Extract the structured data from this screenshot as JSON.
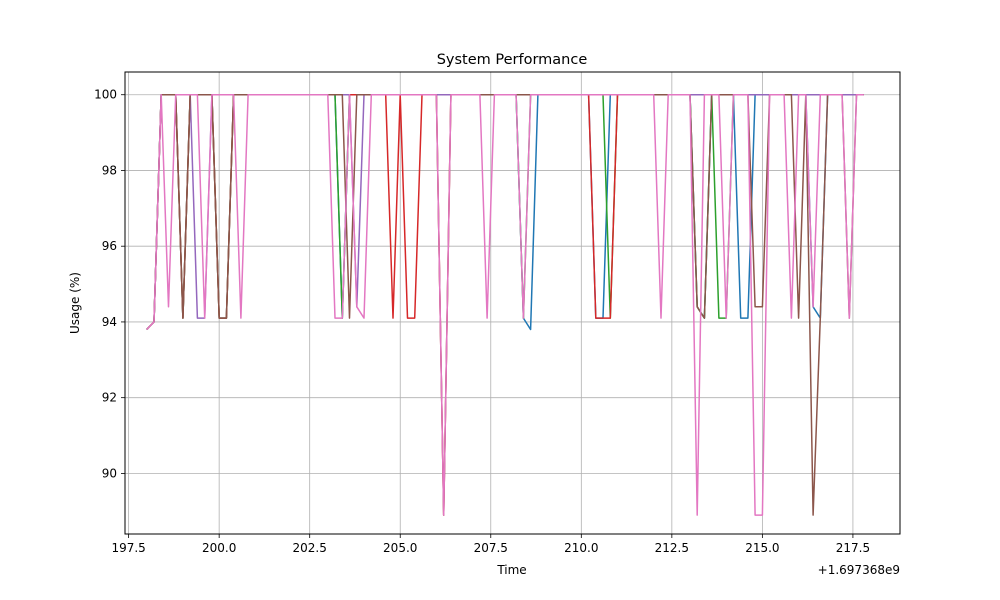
{
  "chart_data": {
    "type": "line",
    "title": "System Performance",
    "xlabel": "Time",
    "ylabel": "Usage (%)",
    "x_offset_label": "+1.697368e9",
    "xlim": [
      197.4,
      218.8
    ],
    "ylim": [
      88.4,
      100.6
    ],
    "x_ticks": [
      197.5,
      200.0,
      202.5,
      205.0,
      207.5,
      210.0,
      212.5,
      215.0,
      217.5
    ],
    "x_tick_labels": [
      "197.5",
      "200.0",
      "202.5",
      "205.0",
      "207.5",
      "210.0",
      "212.5",
      "215.0",
      "217.5"
    ],
    "y_ticks": [
      90,
      92,
      94,
      96,
      98,
      100
    ],
    "y_tick_labels": [
      "90",
      "92",
      "94",
      "96",
      "98",
      "100"
    ],
    "grid": true,
    "legend": "none",
    "series": [
      {
        "color": "#1f77b4",
        "x": [
          198.0,
          198.2,
          198.4,
          198.6,
          198.8,
          199.0,
          199.2,
          199.4,
          199.6,
          199.8,
          200.0,
          200.2,
          200.4,
          200.6,
          200.8,
          201.0,
          202.0,
          203.0,
          203.2,
          203.4,
          203.6,
          203.8,
          204.0,
          204.2,
          204.4,
          204.6,
          204.8,
          205.0,
          205.2,
          205.4,
          205.6,
          205.8,
          206.0,
          206.2,
          206.4,
          206.6,
          207.0,
          207.2,
          207.4,
          207.6,
          208.0,
          208.2,
          208.4,
          208.6,
          208.8,
          209.0,
          210.0,
          210.2,
          210.4,
          210.6,
          210.8,
          211.0,
          211.4,
          211.6,
          211.8,
          212.0,
          212.2,
          212.4,
          212.6,
          213.0,
          213.2,
          213.4,
          213.6,
          213.8,
          214.0,
          214.2,
          214.4,
          214.6,
          214.8,
          215.0,
          215.2,
          215.4,
          215.6,
          215.8,
          216.0,
          216.2,
          216.4,
          216.6,
          216.8,
          217.0,
          217.2,
          217.4,
          217.6,
          217.8
        ],
        "y": [
          93.8,
          94.0,
          100.0,
          100.0,
          100.0,
          94.1,
          100.0,
          100.0,
          100.0,
          100.0,
          94.1,
          94.1,
          100.0,
          100.0,
          100.0,
          100.0,
          100.0,
          100.0,
          100.0,
          94.1,
          100.0,
          100.0,
          100.0,
          100.0,
          100.0,
          100.0,
          100.0,
          100.0,
          100.0,
          100.0,
          100.0,
          100.0,
          100.0,
          100.0,
          100.0,
          100.0,
          100.0,
          100.0,
          100.0,
          100.0,
          100.0,
          100.0,
          94.1,
          93.8,
          100.0,
          100.0,
          100.0,
          100.0,
          94.1,
          94.1,
          100.0,
          100.0,
          100.0,
          100.0,
          100.0,
          100.0,
          100.0,
          100.0,
          100.0,
          100.0,
          94.4,
          94.1,
          100.0,
          100.0,
          100.0,
          100.0,
          94.1,
          94.1,
          100.0,
          100.0,
          100.0,
          100.0,
          100.0,
          100.0,
          100.0,
          100.0,
          94.4,
          94.1,
          100.0,
          100.0,
          100.0,
          100.0,
          100.0,
          100.0
        ]
      },
      {
        "color": "#2ca02c",
        "x": [
          198.0,
          198.2,
          198.4,
          198.6,
          198.8,
          199.0,
          199.2,
          199.4,
          199.6,
          199.8,
          200.0,
          200.2,
          200.4,
          200.6,
          200.8,
          201.0,
          202.0,
          203.0,
          203.2,
          203.4,
          203.6,
          203.8,
          204.0,
          204.2,
          204.4,
          204.6,
          204.8,
          205.0,
          205.2,
          205.4,
          205.6,
          205.8,
          206.0,
          206.2,
          206.4,
          206.6,
          207.0,
          207.2,
          207.4,
          207.6,
          208.0,
          208.2,
          208.4,
          208.6,
          208.8,
          209.0,
          210.0,
          210.4,
          210.6,
          210.8,
          211.0,
          211.2,
          211.6,
          212.0,
          212.4,
          212.6,
          213.0,
          213.2,
          213.4,
          213.6,
          213.8,
          214.0,
          214.2,
          214.4,
          214.6,
          214.8,
          215.0,
          215.2,
          215.4,
          215.6,
          215.8,
          216.0,
          216.4,
          216.6,
          216.8,
          217.0,
          217.2,
          217.4,
          217.6,
          217.8
        ],
        "y": [
          93.8,
          94.0,
          100.0,
          100.0,
          100.0,
          94.1,
          100.0,
          100.0,
          100.0,
          100.0,
          94.1,
          94.1,
          100.0,
          100.0,
          100.0,
          100.0,
          100.0,
          100.0,
          100.0,
          94.1,
          100.0,
          100.0,
          100.0,
          100.0,
          100.0,
          100.0,
          100.0,
          100.0,
          100.0,
          100.0,
          100.0,
          100.0,
          100.0,
          100.0,
          100.0,
          100.0,
          100.0,
          100.0,
          100.0,
          100.0,
          100.0,
          100.0,
          94.1,
          100.0,
          100.0,
          100.0,
          100.0,
          100.0,
          100.0,
          94.1,
          100.0,
          100.0,
          100.0,
          100.0,
          100.0,
          100.0,
          100.0,
          94.4,
          94.1,
          100.0,
          94.1,
          94.1,
          100.0,
          100.0,
          100.0,
          100.0,
          100.0,
          100.0,
          100.0,
          100.0,
          100.0,
          100.0,
          100.0,
          100.0,
          100.0,
          100.0,
          100.0,
          100.0,
          100.0,
          100.0
        ]
      },
      {
        "color": "#d62728",
        "x": [
          198.0,
          198.2,
          198.4,
          198.6,
          198.8,
          199.0,
          199.2,
          199.4,
          199.6,
          199.8,
          200.0,
          200.2,
          200.4,
          200.6,
          200.8,
          201.0,
          202.0,
          203.0,
          203.2,
          203.4,
          203.6,
          203.8,
          204.0,
          204.2,
          204.4,
          204.6,
          204.8,
          205.0,
          205.2,
          205.4,
          205.6,
          205.8,
          206.0,
          206.2,
          206.4,
          206.6,
          207.0,
          208.0,
          208.4,
          208.6,
          209.0,
          210.0,
          210.2,
          210.4,
          210.6,
          210.8,
          211.0,
          212.0,
          213.0,
          213.4,
          213.6,
          214.0,
          214.4,
          214.8,
          215.0,
          215.4,
          215.8,
          216.0,
          216.4,
          216.8,
          217.0,
          217.4,
          217.8
        ],
        "y": [
          93.8,
          94.0,
          100.0,
          100.0,
          100.0,
          94.1,
          100.0,
          100.0,
          100.0,
          100.0,
          94.1,
          94.1,
          100.0,
          100.0,
          100.0,
          100.0,
          100.0,
          100.0,
          100.0,
          100.0,
          100.0,
          100.0,
          100.0,
          100.0,
          100.0,
          100.0,
          94.1,
          100.0,
          94.1,
          94.1,
          100.0,
          100.0,
          100.0,
          88.9,
          100.0,
          100.0,
          100.0,
          100.0,
          100.0,
          100.0,
          100.0,
          100.0,
          100.0,
          94.1,
          94.1,
          94.1,
          100.0,
          100.0,
          100.0,
          100.0,
          100.0,
          100.0,
          100.0,
          100.0,
          100.0,
          100.0,
          100.0,
          100.0,
          100.0,
          100.0,
          100.0,
          100.0,
          100.0
        ]
      },
      {
        "color": "#9467bd",
        "x": [
          198.0,
          198.2,
          198.4,
          198.6,
          198.8,
          199.0,
          199.2,
          199.4,
          199.6,
          199.8,
          200.0,
          201.0,
          202.0,
          203.0,
          203.6,
          203.8,
          204.0,
          204.2,
          205.0,
          206.0,
          207.0,
          208.0,
          209.0,
          210.0,
          211.0,
          212.0,
          213.0,
          214.0,
          214.2,
          214.4,
          215.0,
          216.0,
          217.0,
          217.8
        ],
        "y": [
          93.8,
          94.0,
          100.0,
          100.0,
          100.0,
          100.0,
          100.0,
          94.1,
          94.1,
          100.0,
          100.0,
          100.0,
          100.0,
          100.0,
          100.0,
          94.4,
          100.0,
          100.0,
          100.0,
          100.0,
          100.0,
          100.0,
          100.0,
          100.0,
          100.0,
          100.0,
          100.0,
          100.0,
          100.0,
          100.0,
          100.0,
          100.0,
          100.0,
          100.0
        ]
      },
      {
        "color": "#8c564b",
        "x": [
          198.0,
          198.2,
          198.4,
          198.6,
          198.8,
          199.0,
          199.2,
          199.4,
          199.6,
          199.8,
          200.0,
          200.2,
          200.4,
          200.6,
          200.8,
          201.0,
          202.0,
          203.0,
          203.2,
          203.4,
          203.6,
          203.8,
          204.0,
          204.2,
          205.0,
          205.4,
          205.8,
          206.0,
          206.2,
          206.4,
          207.0,
          208.0,
          209.0,
          210.0,
          211.0,
          212.0,
          213.0,
          213.2,
          213.4,
          213.6,
          214.0,
          214.4,
          214.6,
          214.8,
          215.0,
          215.2,
          215.4,
          215.8,
          216.0,
          216.2,
          216.4,
          216.6,
          216.8,
          217.0,
          217.2,
          217.4,
          217.6,
          217.8
        ],
        "y": [
          93.8,
          94.0,
          100.0,
          100.0,
          100.0,
          94.1,
          100.0,
          100.0,
          100.0,
          100.0,
          94.1,
          94.1,
          100.0,
          100.0,
          100.0,
          100.0,
          100.0,
          100.0,
          100.0,
          100.0,
          94.1,
          100.0,
          100.0,
          100.0,
          100.0,
          100.0,
          100.0,
          100.0,
          88.9,
          100.0,
          100.0,
          100.0,
          100.0,
          100.0,
          100.0,
          100.0,
          100.0,
          94.4,
          94.1,
          100.0,
          100.0,
          100.0,
          100.0,
          94.4,
          94.4,
          100.0,
          100.0,
          100.0,
          94.1,
          100.0,
          88.9,
          94.1,
          100.0,
          100.0,
          100.0,
          94.1,
          100.0,
          100.0
        ]
      },
      {
        "color": "#e377c2",
        "x": [
          198.0,
          198.2,
          198.4,
          198.6,
          198.8,
          199.0,
          199.2,
          199.4,
          199.6,
          199.8,
          200.0,
          200.2,
          200.4,
          200.6,
          200.8,
          201.0,
          202.0,
          203.0,
          203.2,
          203.4,
          203.6,
          203.8,
          204.0,
          204.2,
          205.0,
          205.4,
          205.8,
          206.0,
          206.2,
          206.4,
          206.6,
          207.0,
          207.2,
          207.4,
          207.6,
          208.0,
          208.2,
          208.4,
          208.6,
          209.0,
          210.0,
          211.0,
          212.0,
          212.2,
          212.4,
          212.6,
          213.0,
          213.2,
          213.4,
          213.6,
          213.8,
          214.0,
          214.2,
          214.4,
          214.6,
          214.8,
          215.0,
          215.2,
          215.4,
          215.6,
          215.8,
          216.0,
          216.2,
          216.4,
          216.6,
          216.8,
          217.0,
          217.2,
          217.4,
          217.6,
          217.8
        ],
        "y": [
          93.8,
          94.0,
          100.0,
          94.4,
          100.0,
          100.0,
          100.0,
          100.0,
          94.1,
          100.0,
          100.0,
          100.0,
          100.0,
          94.1,
          100.0,
          100.0,
          100.0,
          100.0,
          94.1,
          94.1,
          100.0,
          94.4,
          94.1,
          100.0,
          100.0,
          100.0,
          100.0,
          100.0,
          88.9,
          100.0,
          100.0,
          100.0,
          100.0,
          94.1,
          100.0,
          100.0,
          100.0,
          94.1,
          100.0,
          100.0,
          100.0,
          100.0,
          100.0,
          94.1,
          100.0,
          100.0,
          100.0,
          88.9,
          100.0,
          100.0,
          100.0,
          94.1,
          100.0,
          100.0,
          100.0,
          88.9,
          88.9,
          100.0,
          100.0,
          100.0,
          94.1,
          100.0,
          100.0,
          94.4,
          100.0,
          100.0,
          100.0,
          100.0,
          94.1,
          100.0,
          100.0
        ]
      }
    ]
  }
}
